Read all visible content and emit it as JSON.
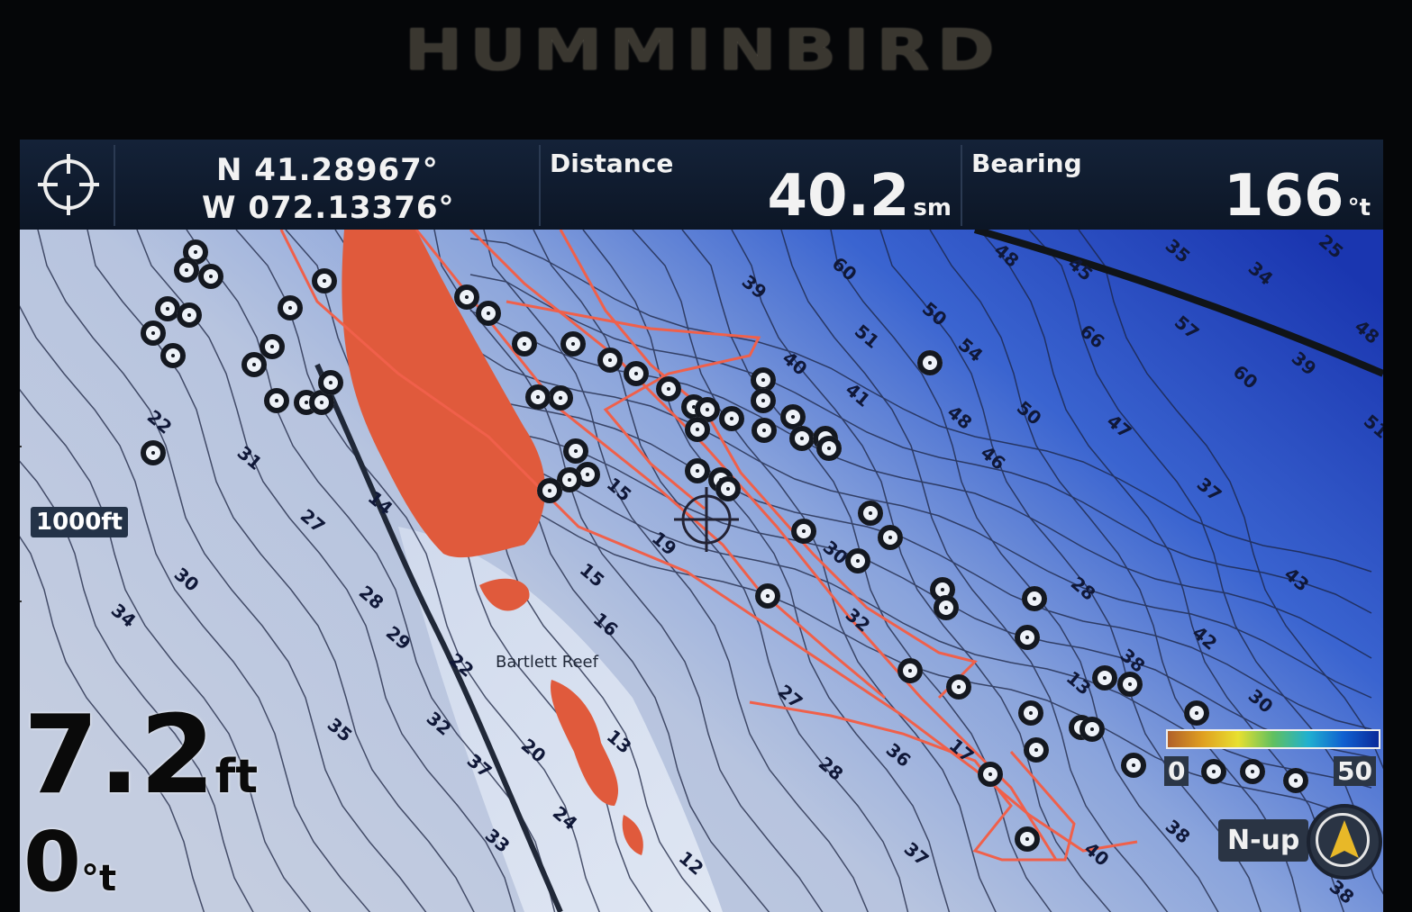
{
  "brand": "HUMMINBIRD",
  "header": {
    "position": {
      "lat": "N 41.28967°",
      "lon": "W 072.13376°"
    },
    "distance": {
      "label": "Distance",
      "value": "40.2",
      "unit": "sm"
    },
    "bearing": {
      "label": "Bearing",
      "value": "166",
      "unit": "°t"
    }
  },
  "map": {
    "place_label": "Bartlett Reef",
    "scale": "1000ft",
    "depth_labels": [
      "22",
      "31",
      "27",
      "30",
      "34",
      "28",
      "29",
      "22",
      "32",
      "35",
      "37",
      "33",
      "20",
      "24",
      "14",
      "15",
      "16",
      "17",
      "13",
      "12",
      "15",
      "19",
      "30",
      "32",
      "28",
      "27",
      "13",
      "36",
      "37",
      "38",
      "40",
      "28",
      "38",
      "42",
      "43",
      "37",
      "47",
      "50",
      "48",
      "46",
      "41",
      "40",
      "39",
      "50",
      "54",
      "51",
      "60",
      "66",
      "57",
      "60",
      "45",
      "48",
      "35",
      "34",
      "25",
      "39",
      "48",
      "51",
      "30",
      "38"
    ],
    "colors": {
      "shallow": "#e05a3c",
      "track": "#f0604a",
      "deep": "#1d3fb8",
      "land_light": "#c8d2e4"
    }
  },
  "depth": {
    "value": "7.2",
    "unit": "ft"
  },
  "heading": {
    "value": "0",
    "unit": "°t"
  },
  "legend": {
    "min": "0",
    "max": "50"
  },
  "orientation": {
    "label": "N-up",
    "icon": "compass-north-arrow-icon"
  }
}
